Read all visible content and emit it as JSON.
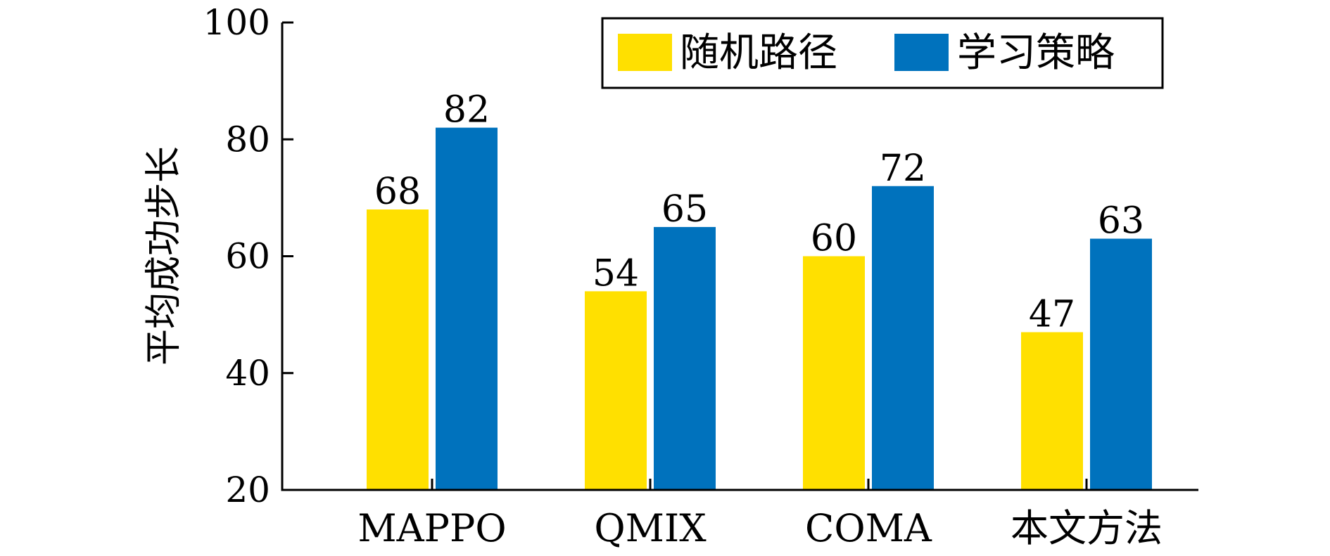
{
  "chart_data": {
    "type": "bar",
    "title": "",
    "xlabel": "",
    "ylabel": "平均成功步长",
    "categories": [
      "MAPPO",
      "QMIX",
      "COMA",
      "本文方法"
    ],
    "series": [
      {
        "name": "随机路径",
        "color": "#FFE000",
        "values": [
          68,
          54,
          60,
          47
        ]
      },
      {
        "name": "学习策略",
        "color": "#0072BD",
        "values": [
          82,
          65,
          72,
          63
        ]
      }
    ],
    "ylim": [
      20,
      100
    ],
    "yticks": [
      20,
      40,
      60,
      80,
      100
    ],
    "grid": false,
    "legend": {
      "position": "top-right",
      "boxed": true
    }
  }
}
